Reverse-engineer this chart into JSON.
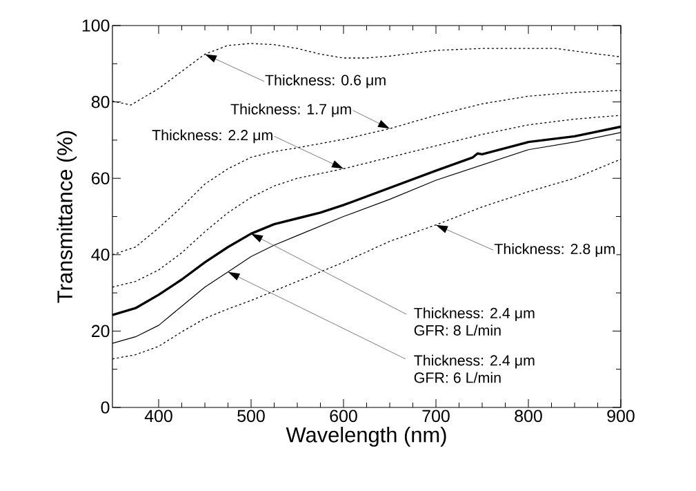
{
  "chart_data": {
    "type": "line",
    "xlabel": "Wavelength (nm)",
    "ylabel": "Transmittance (%)",
    "xlim": [
      350,
      900
    ],
    "ylim": [
      0,
      100
    ],
    "xticks": [
      400,
      500,
      600,
      700,
      800,
      900
    ],
    "yticks": [
      0,
      20,
      40,
      60,
      80,
      100
    ],
    "series": [
      {
        "color": "#000000",
        "line_style": "dotted",
        "x": [
          350,
          370,
          400,
          425,
          450,
          475,
          500,
          525,
          550,
          575,
          600,
          625,
          650,
          700,
          750,
          800,
          830,
          860,
          900
        ],
        "values": [
          80.2,
          79.2,
          83.5,
          88,
          92.5,
          94.8,
          95.3,
          95,
          94,
          92.5,
          91.5,
          91.5,
          92,
          93.5,
          94,
          94,
          94,
          93,
          91.8
        ]
      },
      {
        "color": "#000000",
        "line_style": "dotted",
        "x": [
          350,
          375,
          400,
          425,
          450,
          475,
          500,
          525,
          550,
          600,
          650,
          700,
          750,
          800,
          850,
          900
        ],
        "values": [
          40,
          42,
          47,
          52.5,
          58.5,
          62.5,
          65.5,
          67,
          68,
          70.2,
          73,
          76.5,
          79.5,
          81.5,
          82.5,
          83
        ]
      },
      {
        "color": "#000000",
        "line_style": "dotted",
        "x": [
          350,
          375,
          400,
          425,
          450,
          475,
          500,
          525,
          550,
          600,
          650,
          700,
          750,
          800,
          850,
          900
        ],
        "values": [
          31.5,
          33,
          36,
          40.5,
          46,
          51,
          55,
          58,
          60,
          62.5,
          65.5,
          68.5,
          71.5,
          74,
          75.5,
          76.5
        ]
      },
      {
        "color": "#000000",
        "line_style": "solid",
        "x": [
          350,
          375,
          400,
          425,
          450,
          475,
          500,
          525,
          550,
          575,
          600,
          650,
          700,
          740,
          745,
          750,
          800,
          850,
          900
        ],
        "values": [
          24.2,
          26,
          29.5,
          33.5,
          38,
          42,
          45.5,
          48,
          49.5,
          51,
          53,
          57.5,
          62,
          65.5,
          66.5,
          66.3,
          69.5,
          71,
          73.5
        ]
      },
      {
        "color": "#000000",
        "line_style": "solid",
        "x": [
          350,
          375,
          400,
          425,
          450,
          475,
          500,
          525,
          550,
          600,
          650,
          700,
          750,
          800,
          850,
          900
        ],
        "values": [
          16.8,
          18.5,
          21.5,
          26.5,
          31.5,
          35.5,
          39.5,
          42.5,
          45,
          50,
          54.5,
          59.5,
          63.5,
          67.5,
          69.5,
          72
        ]
      },
      {
        "color": "#000000",
        "line_style": "dotted",
        "x": [
          350,
          375,
          400,
          425,
          450,
          475,
          500,
          525,
          550,
          600,
          650,
          700,
          750,
          800,
          850,
          900
        ],
        "values": [
          12.7,
          13.8,
          16,
          19.8,
          23.3,
          25.8,
          28,
          30.5,
          33,
          38,
          43.5,
          47.8,
          52.5,
          56.5,
          60,
          65
        ]
      }
    ],
    "annotations": [
      {
        "text": "Thickness: 0.6 μm",
        "x": 450,
        "y": 92.5
      },
      {
        "text": "Thickness: 1.7 μm",
        "x": 650,
        "y": 73
      },
      {
        "text": "Thickness: 2.2 μm",
        "x": 600,
        "y": 62.5
      },
      {
        "text": "Thickness: 2.8 μm",
        "x": 700,
        "y": 47.8
      },
      {
        "text": "Thickness: 2.4 μm",
        "x": 500,
        "y": 45.5
      },
      "GFR:   8 L/min",
      {
        "text": "Thickness: 2.4 μm",
        "x": 475,
        "y": 35.5
      },
      "GFR:   6 L/min"
    ]
  }
}
